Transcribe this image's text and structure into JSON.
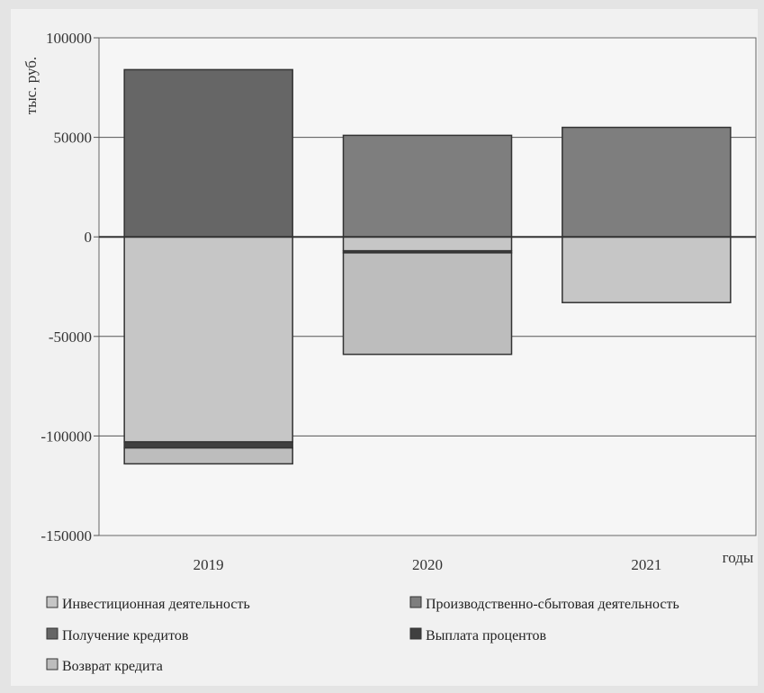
{
  "chart_data": {
    "type": "bar",
    "stacked": true,
    "ylabel": "тыс. руб.",
    "xlabel": "годы",
    "categories": [
      "2019",
      "2020",
      "2021"
    ],
    "ylim": [
      -150000,
      100000
    ],
    "yticks": [
      100000,
      50000,
      0,
      -50000,
      -100000,
      -150000
    ],
    "ytick_labels": [
      "100000",
      "50000",
      "0",
      "-50000",
      "-100000",
      "-150000"
    ],
    "grid": true,
    "legend_position": "bottom",
    "series": [
      {
        "name": "Инвестиционная деятельность",
        "values": [
          -103000,
          -7000,
          -33000
        ],
        "color": "#c6c6c6"
      },
      {
        "name": "Производственно-сбытовая деятельность",
        "values": [
          0,
          51000,
          55000
        ],
        "color": "#7e7e7e"
      },
      {
        "name": "Получение кредитов",
        "values": [
          84000,
          0,
          0
        ],
        "color": "#666666"
      },
      {
        "name": "Выплата процентов",
        "values": [
          -3000,
          -1000,
          0
        ],
        "color": "#3f3f3f"
      },
      {
        "name": "Возврат кредита",
        "values": [
          -8000,
          -51000,
          0
        ],
        "color": "#bdbdbd"
      }
    ]
  }
}
